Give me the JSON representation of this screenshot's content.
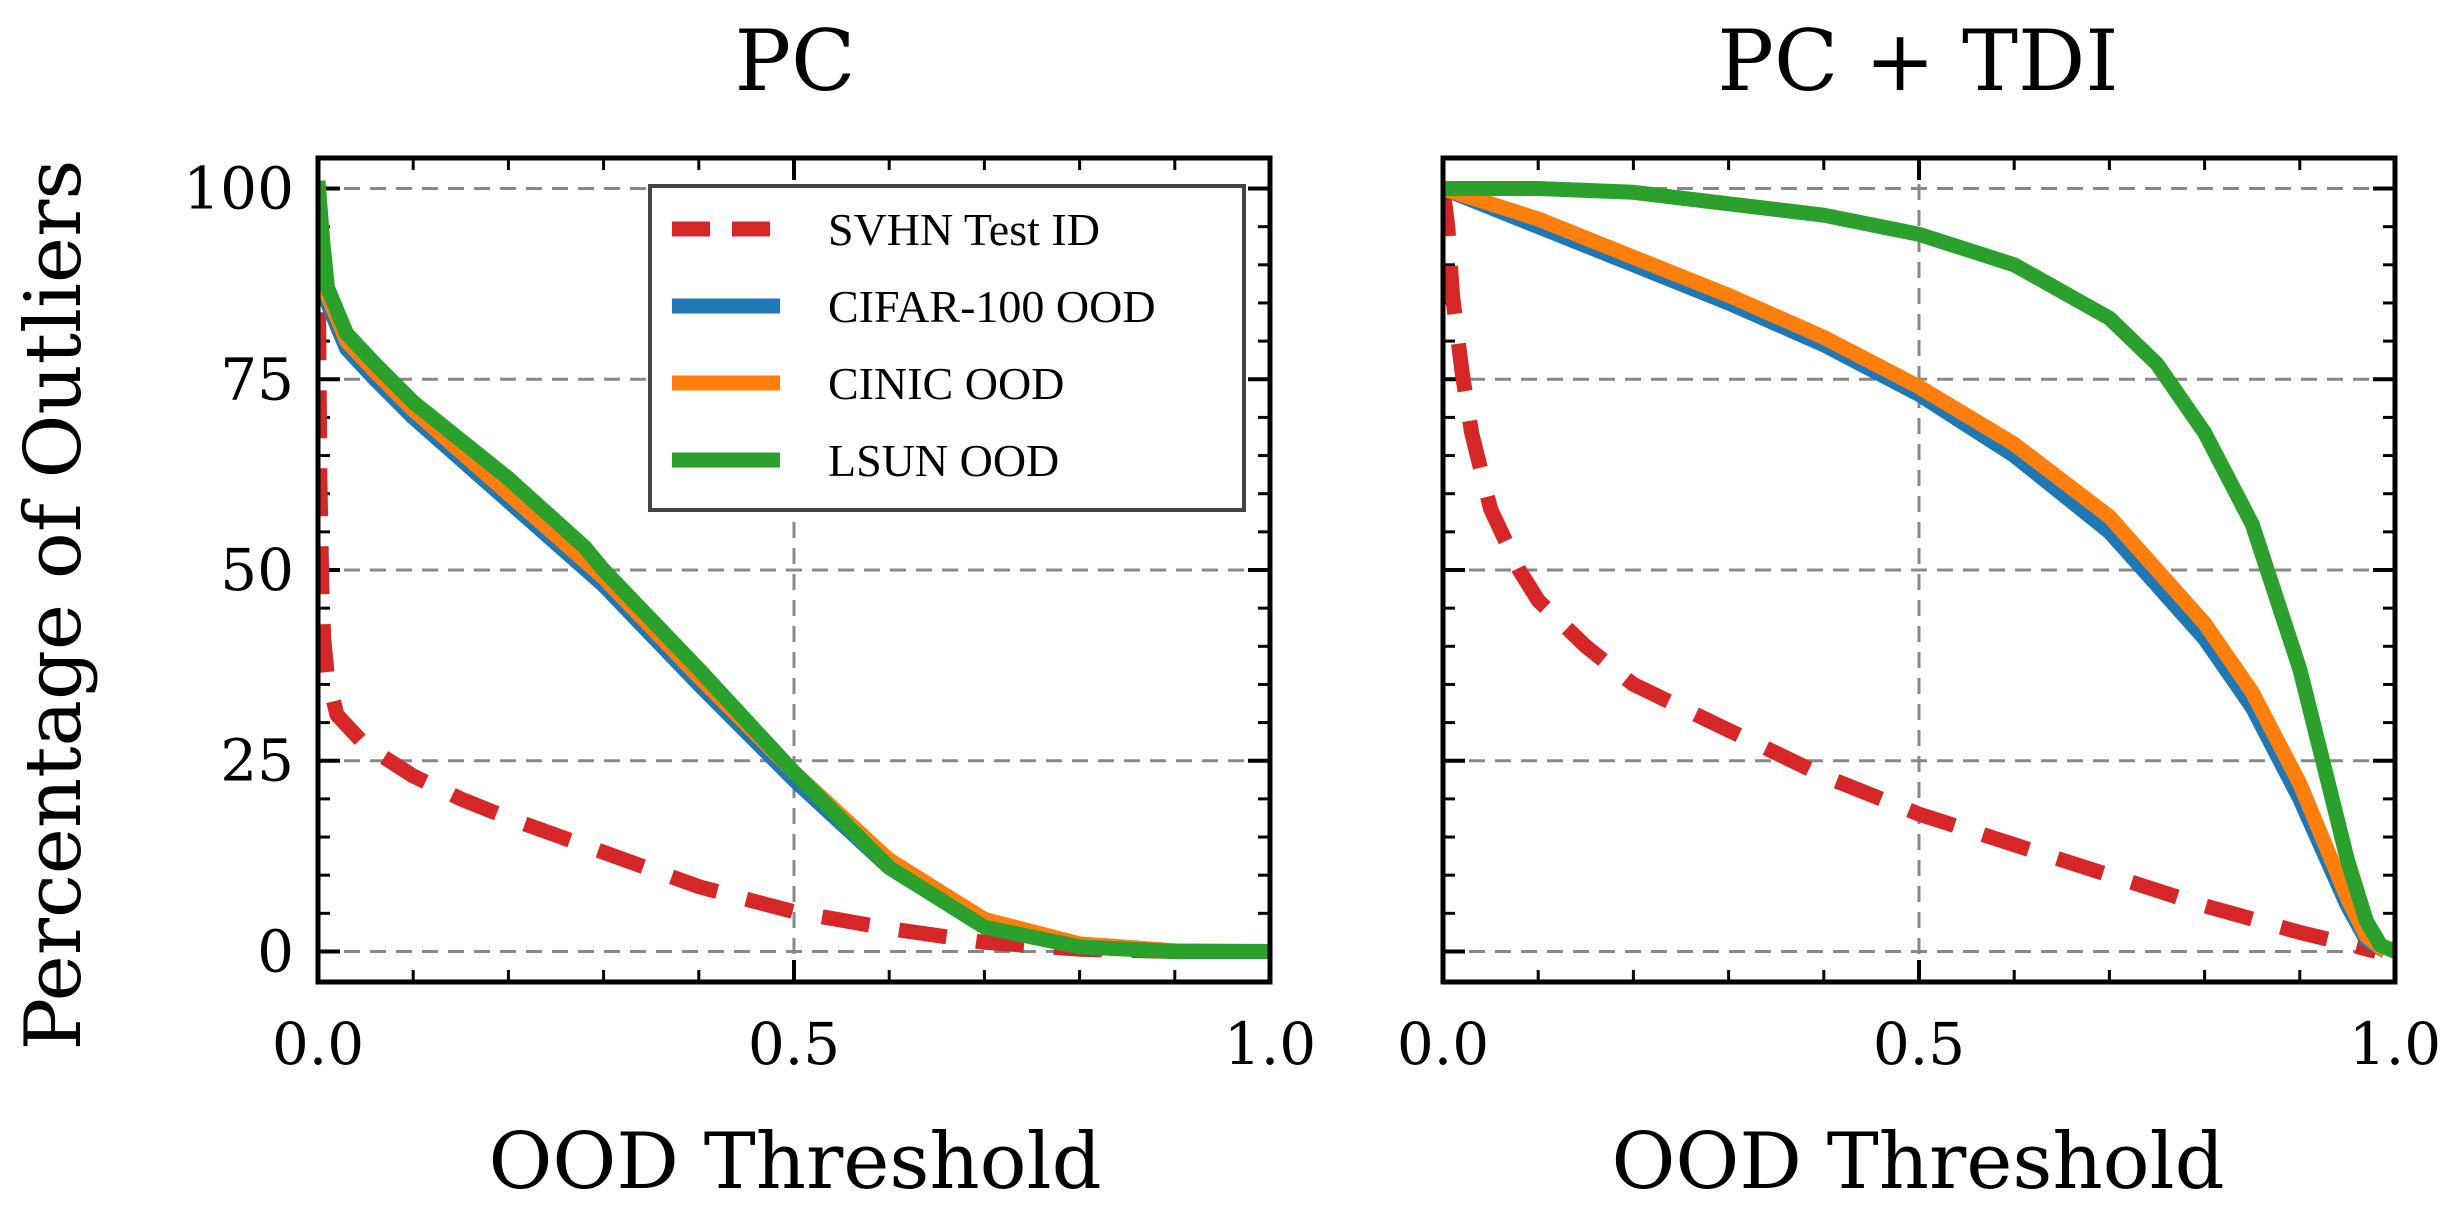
{
  "colors": {
    "svhn": "#d62728",
    "cifar": "#1f77b4",
    "cinic": "#ff7f0e",
    "lsun": "#2ca02c",
    "grid": "#888888"
  },
  "ylabel": "Percentage of Outliers",
  "chart_data": [
    {
      "type": "line",
      "title": "PC",
      "xlabel": "OOD Threshold",
      "xlim": [
        0,
        1
      ],
      "ylim": [
        -4,
        104
      ],
      "xticks": [
        "0.0",
        "0.5",
        "1.0"
      ],
      "yticks": [
        "0",
        "25",
        "50",
        "75",
        "100"
      ],
      "grid": true,
      "legend_position": "top-right",
      "series": [
        {
          "name": "SVHN Test ID",
          "style": "dashed",
          "color": "#d62728",
          "x": [
            0,
            0.002,
            0.004,
            0.006,
            0.01,
            0.02,
            0.05,
            0.1,
            0.15,
            0.2,
            0.3,
            0.4,
            0.5,
            0.6,
            0.7,
            0.8,
            0.9,
            1.0
          ],
          "y": [
            94,
            62,
            48,
            41,
            36,
            31,
            27,
            23,
            20,
            17.5,
            13,
            8.5,
            5.2,
            3,
            1.2,
            0.3,
            0,
            0
          ]
        },
        {
          "name": "CIFAR-100 OOD",
          "style": "solid",
          "color": "#1f77b4",
          "x": [
            0,
            0.01,
            0.03,
            0.06,
            0.1,
            0.2,
            0.3,
            0.4,
            0.5,
            0.6,
            0.7,
            0.8,
            0.9,
            1.0
          ],
          "y": [
            92,
            85,
            79,
            75,
            70,
            59,
            48,
            35,
            22.5,
            11,
            3.5,
            0.8,
            0,
            0
          ]
        },
        {
          "name": "CINIC OOD",
          "style": "solid",
          "color": "#ff7f0e",
          "x": [
            0,
            0.01,
            0.03,
            0.06,
            0.1,
            0.2,
            0.3,
            0.4,
            0.5,
            0.6,
            0.7,
            0.8,
            0.9,
            1.0
          ],
          "y": [
            93,
            86,
            80,
            76,
            71,
            60,
            49,
            36,
            23.5,
            12,
            4.2,
            1,
            0.1,
            0
          ]
        },
        {
          "name": "LSUN OOD",
          "style": "solid",
          "color": "#2ca02c",
          "x": [
            0,
            0.005,
            0.01,
            0.03,
            0.06,
            0.1,
            0.2,
            0.28,
            0.3,
            0.4,
            0.5,
            0.6,
            0.7,
            0.8,
            0.9,
            1.0
          ],
          "y": [
            101,
            93,
            87,
            81,
            77,
            72,
            62,
            53,
            50,
            37,
            23.5,
            11,
            3.2,
            0.6,
            0,
            0
          ]
        }
      ]
    },
    {
      "type": "line",
      "title": "PC + TDI",
      "xlabel": "OOD Threshold",
      "xlim": [
        0,
        1
      ],
      "ylim": [
        -4,
        104
      ],
      "xticks": [
        "0.0",
        "0.5",
        "1.0"
      ],
      "yticks": [
        "0",
        "25",
        "50",
        "75",
        "100"
      ],
      "grid": true,
      "series": [
        {
          "name": "SVHN Test ID",
          "style": "dashed",
          "color": "#d62728",
          "x": [
            0,
            0.005,
            0.01,
            0.02,
            0.03,
            0.05,
            0.08,
            0.1,
            0.15,
            0.2,
            0.3,
            0.4,
            0.5,
            0.6,
            0.7,
            0.8,
            0.9,
            0.95,
            0.98
          ],
          "y": [
            100,
            95,
            86,
            76,
            68,
            58,
            50,
            46,
            40,
            35,
            29,
            23,
            18,
            14,
            10,
            6,
            2.5,
            1,
            0
          ]
        },
        {
          "name": "CIFAR-100 OOD",
          "style": "solid",
          "color": "#1f77b4",
          "x": [
            0,
            0.1,
            0.2,
            0.3,
            0.4,
            0.5,
            0.6,
            0.7,
            0.8,
            0.85,
            0.9,
            0.95,
            0.97,
            0.99
          ],
          "y": [
            100,
            95,
            90,
            85,
            79.5,
            73,
            65,
            55,
            41,
            32,
            20,
            6,
            1.5,
            0
          ]
        },
        {
          "name": "CINIC OOD",
          "style": "solid",
          "color": "#ff7f0e",
          "x": [
            0,
            0.1,
            0.2,
            0.3,
            0.4,
            0.5,
            0.6,
            0.7,
            0.8,
            0.85,
            0.9,
            0.95,
            0.97,
            0.99
          ],
          "y": [
            100,
            96,
            91,
            86,
            80.5,
            74,
            66.5,
            57,
            43,
            34,
            22,
            7,
            2,
            0
          ]
        },
        {
          "name": "LSUN OOD",
          "style": "solid",
          "color": "#2ca02c",
          "x": [
            0,
            0.1,
            0.2,
            0.3,
            0.4,
            0.5,
            0.6,
            0.7,
            0.75,
            0.8,
            0.85,
            0.9,
            0.93,
            0.95,
            0.97,
            0.985,
            1.0
          ],
          "y": [
            100,
            100,
            99.5,
            98,
            96.5,
            94,
            90,
            83,
            77,
            68,
            56,
            37,
            22,
            12,
            4,
            0.8,
            0
          ]
        }
      ]
    }
  ]
}
